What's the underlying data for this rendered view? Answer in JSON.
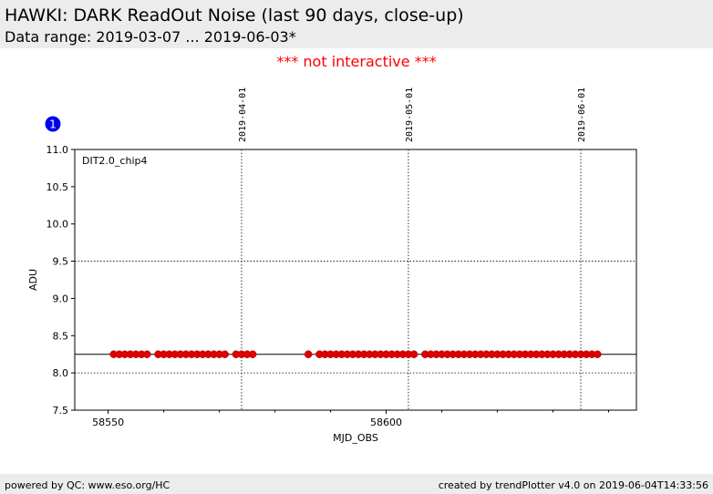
{
  "header": {
    "title": "HAWKI: DARK ReadOut Noise (last 90 days, close-up)",
    "subtitle": "Data range: 2019-03-07 ... 2019-06-03*"
  },
  "notice": "*** not interactive ***",
  "badge": "1",
  "footer": {
    "left": "powered by QC: www.eso.org/HC",
    "right": "created by trendPlotter v4.0 on 2019-06-04T14:33:56"
  },
  "colors": {
    "points": "#dd0000",
    "points_edge": "#aa0000",
    "badge": "#0000ee",
    "notice": "#ff0000",
    "bar": "#ececec"
  },
  "chart_data": {
    "type": "scatter",
    "panel_label": "DIT2.0_chip4",
    "xlabel": "MJD_OBS",
    "ylabel": "ADU",
    "xlim": [
      58544,
      58645
    ],
    "ylim": [
      7.5,
      11.0
    ],
    "x_ticks": [
      58550,
      58600
    ],
    "y_ticks": [
      7.5,
      8.0,
      8.5,
      9.0,
      9.5,
      10.0,
      10.5,
      11.0
    ],
    "y_tick_labels": [
      "7.5",
      "8.0",
      "8.5",
      "9.0",
      "9.5",
      "10.0",
      "10.5",
      "11.0"
    ],
    "grid_y": [
      8.0,
      9.5
    ],
    "reference_line_y": 8.25,
    "date_markers": [
      {
        "label": "2019-04-01",
        "x": 58574
      },
      {
        "label": "2019-05-01",
        "x": 58604
      },
      {
        "label": "2019-06-01",
        "x": 58635
      }
    ],
    "series": [
      {
        "x": [
          58551,
          58552,
          58553,
          58554,
          58555,
          58556,
          58557,
          58559,
          58560,
          58561,
          58562,
          58563,
          58564,
          58565,
          58566,
          58567,
          58568,
          58569,
          58570,
          58571,
          58573,
          58574,
          58575,
          58576,
          58586,
          58588,
          58589,
          58590,
          58591,
          58592,
          58593,
          58594,
          58595,
          58596,
          58597,
          58598,
          58599,
          58600,
          58601,
          58602,
          58603,
          58604,
          58605,
          58607,
          58608,
          58609,
          58610,
          58611,
          58612,
          58613,
          58614,
          58615,
          58616,
          58617,
          58618,
          58619,
          58620,
          58621,
          58622,
          58623,
          58624,
          58625,
          58626,
          58627,
          58628,
          58629,
          58630,
          58631,
          58632,
          58633,
          58634,
          58635,
          58636,
          58637,
          58638
        ],
        "y": [
          8.25,
          8.25,
          8.25,
          8.25,
          8.25,
          8.25,
          8.25,
          8.25,
          8.25,
          8.25,
          8.25,
          8.25,
          8.25,
          8.25,
          8.25,
          8.25,
          8.25,
          8.25,
          8.25,
          8.25,
          8.25,
          8.25,
          8.25,
          8.25,
          8.25,
          8.25,
          8.25,
          8.25,
          8.25,
          8.25,
          8.25,
          8.25,
          8.25,
          8.25,
          8.25,
          8.25,
          8.25,
          8.25,
          8.25,
          8.25,
          8.25,
          8.25,
          8.25,
          8.25,
          8.25,
          8.25,
          8.25,
          8.25,
          8.25,
          8.25,
          8.25,
          8.25,
          8.25,
          8.25,
          8.25,
          8.25,
          8.25,
          8.25,
          8.25,
          8.25,
          8.25,
          8.25,
          8.25,
          8.25,
          8.25,
          8.25,
          8.25,
          8.25,
          8.25,
          8.25,
          8.25,
          8.25,
          8.25,
          8.25,
          8.25
        ]
      }
    ]
  }
}
